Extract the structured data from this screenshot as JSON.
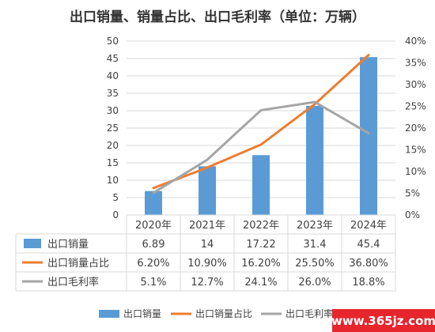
{
  "chart_data": {
    "type": "bar",
    "title": "出口销量、销量占比、出口毛利率（单位：万辆）",
    "categories": [
      "2020年",
      "2021年",
      "2022年",
      "2023年",
      "2024年"
    ],
    "y_left": {
      "min": 0,
      "max": 50,
      "step": 5,
      "ticks": [
        "0",
        "5",
        "10",
        "15",
        "20",
        "25",
        "30",
        "35",
        "40",
        "45",
        "50"
      ]
    },
    "y_right": {
      "min": 0,
      "max": 40,
      "step": 5,
      "ticks": [
        "0%",
        "5%",
        "10%",
        "15%",
        "20%",
        "25%",
        "30%",
        "35%",
        "40%"
      ]
    },
    "grid": true,
    "legend_position": "bottom",
    "series": [
      {
        "name": "出口销量",
        "kind": "bar",
        "axis": "left",
        "color": "#5b9bd5",
        "values": [
          6.89,
          14,
          17.22,
          31.4,
          45.4
        ],
        "labels": [
          "6.89",
          "14",
          "17.22",
          "31.4",
          "45.4"
        ]
      },
      {
        "name": "出口销量占比",
        "kind": "line",
        "axis": "right",
        "color": "#ed7d31",
        "values": [
          6.2,
          10.9,
          16.2,
          25.5,
          36.8
        ],
        "labels": [
          "6.20%",
          "10.90%",
          "16.20%",
          "25.50%",
          "36.80%"
        ]
      },
      {
        "name": "出口毛利率",
        "kind": "line",
        "axis": "right",
        "color": "#a5a5a5",
        "values": [
          5.1,
          12.7,
          24.1,
          26.0,
          18.8
        ],
        "labels": [
          "5.1%",
          "12.7%",
          "24.1%",
          "26.0%",
          "18.8%"
        ]
      }
    ]
  },
  "watermark": "www.365jz.com"
}
